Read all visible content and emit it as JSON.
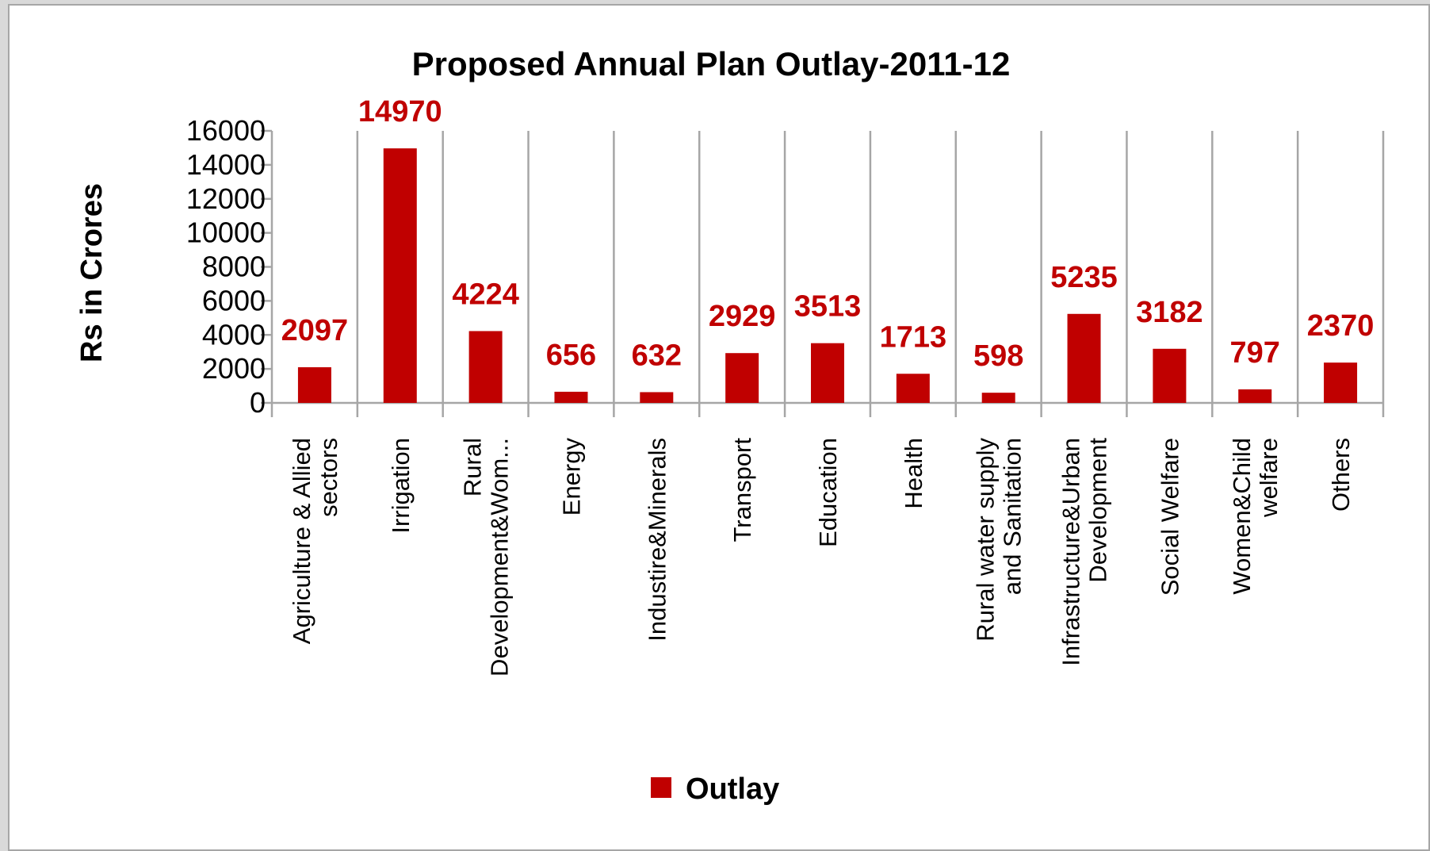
{
  "chart_data": {
    "type": "bar",
    "title": "Proposed Annual Plan Outlay-2011-12",
    "ylabel": "Rs in Crores",
    "xlabel": "",
    "ylim": [
      0,
      16000
    ],
    "yticks": [
      0,
      2000,
      4000,
      6000,
      8000,
      10000,
      12000,
      14000,
      16000
    ],
    "grid": "vertical category separators",
    "legend_position": "bottom",
    "categories": [
      "Agriculture & Allied sectors",
      "Irrigation",
      "Rural Development&Wom...",
      "Energy",
      "Industire&Minerals",
      "Transport",
      "Education",
      "Health",
      "Rural water supply and Sanitation",
      "Infrastructure&Urban Development",
      "Social Welfare",
      "Women&Child welfare",
      "Others"
    ],
    "category_lines": [
      [
        "Agriculture & Allied",
        "sectors"
      ],
      [
        "Irrigation"
      ],
      [
        "Rural",
        "Development&Wom..."
      ],
      [
        "Energy"
      ],
      [
        "Industire&Minerals"
      ],
      [
        "Transport"
      ],
      [
        "Education"
      ],
      [
        "Health"
      ],
      [
        "Rural water supply",
        "and Sanitation"
      ],
      [
        "Infrastructure&Urban",
        "Development"
      ],
      [
        "Social Welfare"
      ],
      [
        "Women&Child",
        "welfare"
      ],
      [
        "Others"
      ]
    ],
    "series": [
      {
        "name": "Outlay",
        "color": "#c00000",
        "values": [
          2097,
          14970,
          4224,
          656,
          632,
          2929,
          3513,
          1713,
          598,
          5235,
          3182,
          797,
          2370
        ]
      }
    ]
  }
}
